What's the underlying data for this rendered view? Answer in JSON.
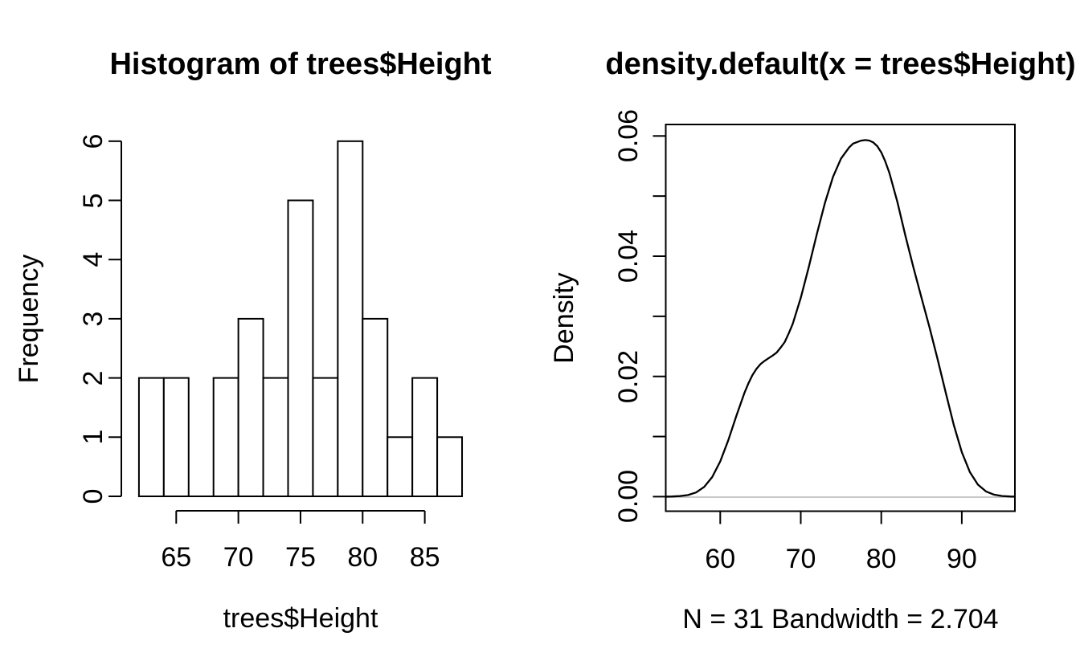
{
  "figure": {
    "background_color": "#ffffff",
    "foreground_color": "#000000",
    "zero_line_color": "#c8c8c8"
  },
  "chart_data": [
    {
      "type": "bar",
      "subtype": "histogram",
      "title": "Histogram of trees$Height",
      "xlabel": "trees$Height",
      "ylabel": "Frequency",
      "breaks": [
        62,
        64,
        66,
        68,
        70,
        72,
        74,
        76,
        78,
        80,
        82,
        84,
        86,
        88
      ],
      "counts": [
        2,
        2,
        0,
        2,
        3,
        2,
        5,
        2,
        6,
        3,
        1,
        2,
        1
      ],
      "bar_fill": "#ffffff",
      "bar_stroke": "#000000",
      "x_ticks": [
        {
          "v": 65,
          "label": "65"
        },
        {
          "v": 70,
          "label": "70"
        },
        {
          "v": 75,
          "label": "75"
        },
        {
          "v": 80,
          "label": "80"
        },
        {
          "v": 85,
          "label": "85"
        }
      ],
      "y_ticks": [
        {
          "v": 0,
          "label": "0"
        },
        {
          "v": 1,
          "label": "1"
        },
        {
          "v": 2,
          "label": "2"
        },
        {
          "v": 3,
          "label": "3"
        },
        {
          "v": 4,
          "label": "4"
        },
        {
          "v": 5,
          "label": "5"
        },
        {
          "v": 6,
          "label": "6"
        }
      ],
      "xlim": [
        62,
        88
      ],
      "ylim": [
        0,
        6
      ],
      "grid": false,
      "legend": null
    },
    {
      "type": "line",
      "subtype": "density",
      "title": "density.default(x = trees$Height)",
      "xlabel": "N = 31   Bandwidth = 2.704",
      "ylabel": "Density",
      "n": 31,
      "bandwidth": 2.704,
      "box": true,
      "line_color": "#000000",
      "zero_line": true,
      "x_ticks": [
        {
          "v": 60,
          "label": "60"
        },
        {
          "v": 70,
          "label": "70"
        },
        {
          "v": 80,
          "label": "80"
        },
        {
          "v": 90,
          "label": "90"
        }
      ],
      "y_ticks": [
        {
          "v": 0.0,
          "label": "0.00"
        },
        {
          "v": 0.01,
          "label": ""
        },
        {
          "v": 0.02,
          "label": "0.02"
        },
        {
          "v": 0.03,
          "label": ""
        },
        {
          "v": 0.04,
          "label": "0.04"
        },
        {
          "v": 0.05,
          "label": ""
        },
        {
          "v": 0.06,
          "label": "0.06"
        }
      ],
      "xlim": [
        53.3,
        96.6
      ],
      "ylim": [
        0,
        0.0593
      ],
      "grid": false,
      "legend": null,
      "curve": [
        [
          53.3,
          2e-05
        ],
        [
          54,
          3e-05
        ],
        [
          55,
          9e-05
        ],
        [
          56,
          0.00027
        ],
        [
          57,
          0.0007
        ],
        [
          58,
          0.00161
        ],
        [
          59,
          0.00326
        ],
        [
          60,
          0.00586
        ],
        [
          61,
          0.00938
        ],
        [
          62,
          0.01341
        ],
        [
          63,
          0.01726
        ],
        [
          63.5,
          0.01885
        ],
        [
          64,
          0.02023
        ],
        [
          64.5,
          0.02125
        ],
        [
          65,
          0.02205
        ],
        [
          65.5,
          0.02258
        ],
        [
          66,
          0.02302
        ],
        [
          66.5,
          0.02346
        ],
        [
          67,
          0.02395
        ],
        [
          67.5,
          0.02478
        ],
        [
          68,
          0.0257
        ],
        [
          68.5,
          0.02715
        ],
        [
          69,
          0.02874
        ],
        [
          70,
          0.03306
        ],
        [
          71,
          0.03821
        ],
        [
          72,
          0.04368
        ],
        [
          73,
          0.04887
        ],
        [
          74,
          0.05318
        ],
        [
          75,
          0.05624
        ],
        [
          76,
          0.05807
        ],
        [
          76.5,
          0.05873
        ],
        [
          77,
          0.05899
        ],
        [
          77.5,
          0.05922
        ],
        [
          78,
          0.05932
        ],
        [
          78.5,
          0.05924
        ],
        [
          79,
          0.05893
        ],
        [
          79.5,
          0.0583
        ],
        [
          80,
          0.05727
        ],
        [
          80.5,
          0.05575
        ],
        [
          81,
          0.0539
        ],
        [
          82,
          0.04904
        ],
        [
          83,
          0.04337
        ],
        [
          84,
          0.03808
        ],
        [
          85,
          0.03306
        ],
        [
          86,
          0.02812
        ],
        [
          87,
          0.02286
        ],
        [
          88,
          0.01732
        ],
        [
          89,
          0.01195
        ],
        [
          90,
          0.00742
        ],
        [
          91,
          0.0041
        ],
        [
          92,
          0.00201
        ],
        [
          93,
          0.00087
        ],
        [
          94,
          0.00033
        ],
        [
          95,
          0.00011
        ],
        [
          96,
          3e-05
        ],
        [
          96.6,
          2e-05
        ]
      ]
    }
  ]
}
